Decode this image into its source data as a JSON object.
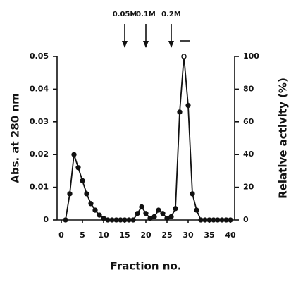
{
  "chart_data": {
    "type": "line",
    "xlabel": "Fraction no.",
    "ylabel": "Abs. at 280 nm",
    "y2label": "Relative activity (%)",
    "x": [
      1,
      2,
      3,
      4,
      5,
      6,
      7,
      8,
      9,
      10,
      11,
      12,
      13,
      14,
      15,
      16,
      17,
      18,
      19,
      20,
      21,
      22,
      23,
      24,
      25,
      26,
      27,
      28,
      29,
      30,
      31,
      32,
      33,
      34,
      35,
      36,
      37,
      38,
      39,
      40
    ],
    "series": [
      {
        "name": "Absorbance",
        "color": "#111111",
        "values": [
          0,
          0.008,
          0.02,
          0.016,
          0.012,
          0.008,
          0.005,
          0.003,
          0.0015,
          0.0005,
          0,
          0,
          0,
          0,
          0,
          0,
          0,
          0.002,
          0.004,
          0.002,
          0.0005,
          0.001,
          0.003,
          0.002,
          0.0005,
          0.001,
          0.0035,
          0.033,
          0.05,
          0.035,
          0.008,
          0.003,
          0,
          0,
          0,
          0,
          0,
          0,
          0,
          0
        ]
      },
      {
        "name": "Activity",
        "color": "#111111",
        "axis": "y2",
        "values": [
          null,
          null,
          null,
          null,
          null,
          null,
          null,
          null,
          null,
          null,
          null,
          null,
          null,
          null,
          null,
          null,
          null,
          null,
          null,
          null,
          null,
          null,
          null,
          null,
          null,
          null,
          null,
          null,
          100,
          null,
          null,
          null,
          null,
          null,
          null,
          null,
          null,
          null,
          null,
          null
        ]
      }
    ],
    "xlim": [
      0,
      40
    ],
    "xticks": [
      0,
      5,
      10,
      15,
      20,
      25,
      30,
      35,
      40
    ],
    "ylim": [
      0,
      0.05
    ],
    "yticks": [
      0,
      0.01,
      0.02,
      0.03,
      0.04,
      0.05
    ],
    "y2lim": [
      0,
      100
    ],
    "y2ticks": [
      0,
      20,
      40,
      60,
      80,
      100
    ],
    "annotations": [
      {
        "text": "0.05M",
        "x": 15
      },
      {
        "text": "0.1M",
        "x": 20
      },
      {
        "text": "0.2M",
        "x": 26
      }
    ]
  }
}
